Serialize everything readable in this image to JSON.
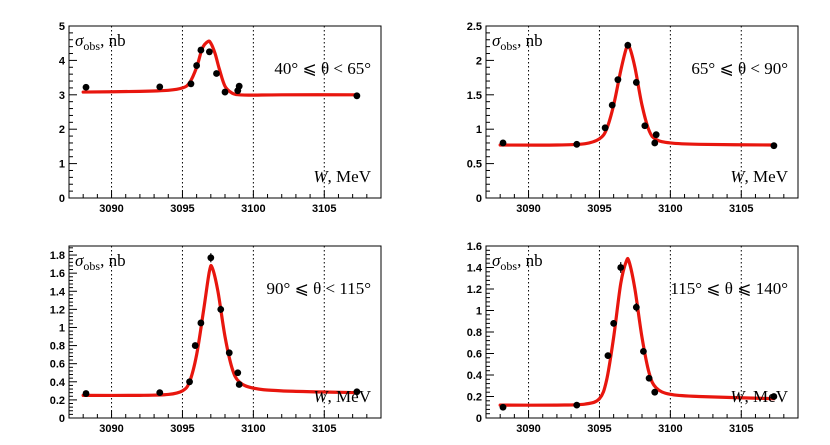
{
  "chart_data": [
    {
      "type": "scatter",
      "panel": "top-left",
      "ylabel": "σobs, nb",
      "xlabel": "W, MeV",
      "annotation": "40° ⩽ θ < 65°",
      "xlim": [
        3087,
        3109
      ],
      "ylim": [
        0,
        5
      ],
      "xticks": [
        3090,
        3095,
        3100,
        3105
      ],
      "yticks": [
        0,
        1,
        2,
        3,
        4,
        5
      ],
      "grid_x": [
        3090,
        3095,
        3100,
        3105
      ],
      "points": [
        {
          "x": 3088.2,
          "y": 3.22,
          "err": 0.06
        },
        {
          "x": 3093.4,
          "y": 3.23,
          "err": 0.06
        },
        {
          "x": 3095.6,
          "y": 3.32,
          "err": 0.06
        },
        {
          "x": 3096.0,
          "y": 3.85,
          "err": 0.08
        },
        {
          "x": 3096.3,
          "y": 4.3,
          "err": 0.08
        },
        {
          "x": 3096.9,
          "y": 4.25,
          "err": 0.08
        },
        {
          "x": 3097.4,
          "y": 3.62,
          "err": 0.08
        },
        {
          "x": 3098.0,
          "y": 3.08,
          "err": 0.07
        },
        {
          "x": 3098.9,
          "y": 3.12,
          "err": 0.08
        },
        {
          "x": 3099.0,
          "y": 3.25,
          "err": 0.08
        },
        {
          "x": 3107.3,
          "y": 2.97,
          "err": 0.05
        }
      ],
      "fit_curve": {
        "x": [
          3088.0,
          3092.0,
          3094.0,
          3095.0,
          3095.5,
          3096.0,
          3096.4,
          3096.8,
          3097.0,
          3097.3,
          3097.6,
          3098.0,
          3098.5,
          3099.0,
          3100.0,
          3102.0,
          3107.3
        ],
        "y": [
          3.08,
          3.1,
          3.13,
          3.2,
          3.35,
          3.8,
          4.35,
          4.55,
          4.5,
          4.2,
          3.75,
          3.25,
          3.05,
          3.0,
          2.99,
          3.0,
          3.0
        ]
      }
    },
    {
      "type": "scatter",
      "panel": "top-right",
      "ylabel": "σobs, nb",
      "xlabel": "W, MeV",
      "annotation": "65° ⩽ θ < 90°",
      "xlim": [
        3087,
        3109
      ],
      "ylim": [
        0,
        2.5
      ],
      "xticks": [
        3090,
        3095,
        3100,
        3105
      ],
      "yticks": [
        0,
        0.5,
        1,
        1.5,
        2,
        2.5
      ],
      "grid_x": [
        3090,
        3095,
        3100,
        3105
      ],
      "points": [
        {
          "x": 3088.2,
          "y": 0.8,
          "err": 0.02
        },
        {
          "x": 3093.4,
          "y": 0.78,
          "err": 0.02
        },
        {
          "x": 3095.4,
          "y": 1.02,
          "err": 0.03
        },
        {
          "x": 3095.9,
          "y": 1.35,
          "err": 0.03
        },
        {
          "x": 3096.3,
          "y": 1.72,
          "err": 0.04
        },
        {
          "x": 3097.0,
          "y": 2.22,
          "err": 0.05
        },
        {
          "x": 3097.6,
          "y": 1.68,
          "err": 0.04
        },
        {
          "x": 3098.2,
          "y": 1.05,
          "err": 0.03
        },
        {
          "x": 3098.9,
          "y": 0.8,
          "err": 0.03
        },
        {
          "x": 3099.0,
          "y": 0.92,
          "err": 0.03
        },
        {
          "x": 3107.3,
          "y": 0.76,
          "err": 0.02
        }
      ],
      "fit_curve": {
        "x": [
          3088.0,
          3092.0,
          3094.0,
          3095.0,
          3095.5,
          3096.0,
          3096.5,
          3096.9,
          3097.1,
          3097.5,
          3098.0,
          3098.5,
          3099.0,
          3100.0,
          3102.0,
          3107.3
        ],
        "y": [
          0.77,
          0.77,
          0.79,
          0.86,
          1.0,
          1.35,
          1.85,
          2.18,
          2.2,
          1.9,
          1.35,
          0.98,
          0.85,
          0.8,
          0.78,
          0.77
        ]
      }
    },
    {
      "type": "scatter",
      "panel": "bottom-left",
      "ylabel": "σobs, nb",
      "xlabel": "W, MeV",
      "annotation": "90° ⩽ θ < 115°",
      "xlim": [
        3087,
        3109
      ],
      "ylim": [
        0,
        1.9
      ],
      "xticks": [
        3090,
        3095,
        3100,
        3105
      ],
      "yticks": [
        0,
        0.2,
        0.4,
        0.6,
        0.8,
        1,
        1.2,
        1.4,
        1.6,
        1.8
      ],
      "grid_x": [
        3090,
        3095,
        3100,
        3105
      ],
      "points": [
        {
          "x": 3088.2,
          "y": 0.27,
          "err": 0.01
        },
        {
          "x": 3093.4,
          "y": 0.28,
          "err": 0.01
        },
        {
          "x": 3095.5,
          "y": 0.4,
          "err": 0.02
        },
        {
          "x": 3095.9,
          "y": 0.8,
          "err": 0.03
        },
        {
          "x": 3096.3,
          "y": 1.05,
          "err": 0.03
        },
        {
          "x": 3097.0,
          "y": 1.77,
          "err": 0.05
        },
        {
          "x": 3097.7,
          "y": 1.2,
          "err": 0.04
        },
        {
          "x": 3098.3,
          "y": 0.72,
          "err": 0.03
        },
        {
          "x": 3098.9,
          "y": 0.5,
          "err": 0.02
        },
        {
          "x": 3099.0,
          "y": 0.37,
          "err": 0.02
        },
        {
          "x": 3107.3,
          "y": 0.29,
          "err": 0.01
        }
      ],
      "fit_curve": {
        "x": [
          3088.0,
          3092.0,
          3094.0,
          3095.0,
          3095.5,
          3096.0,
          3096.5,
          3096.9,
          3097.1,
          3097.5,
          3098.0,
          3098.5,
          3099.0,
          3100.0,
          3102.0,
          3107.3
        ],
        "y": [
          0.25,
          0.25,
          0.26,
          0.3,
          0.4,
          0.7,
          1.2,
          1.62,
          1.66,
          1.4,
          0.9,
          0.55,
          0.4,
          0.33,
          0.3,
          0.28
        ]
      }
    },
    {
      "type": "scatter",
      "panel": "bottom-right",
      "ylabel": "σobs, nb",
      "xlabel": "W, MeV",
      "annotation": "115° ⩽ θ ⩽ 140°",
      "xlim": [
        3087,
        3109
      ],
      "ylim": [
        0,
        1.6
      ],
      "xticks": [
        3090,
        3095,
        3100,
        3105
      ],
      "yticks": [
        0,
        0.2,
        0.4,
        0.6,
        0.8,
        1,
        1.2,
        1.4,
        1.6
      ],
      "grid_x": [
        3090,
        3095,
        3100,
        3105
      ],
      "points": [
        {
          "x": 3088.2,
          "y": 0.1,
          "err": 0.01
        },
        {
          "x": 3093.4,
          "y": 0.12,
          "err": 0.01
        },
        {
          "x": 3095.6,
          "y": 0.58,
          "err": 0.03
        },
        {
          "x": 3096.0,
          "y": 0.88,
          "err": 0.03
        },
        {
          "x": 3096.5,
          "y": 1.4,
          "err": 0.05
        },
        {
          "x": 3097.6,
          "y": 1.03,
          "err": 0.04
        },
        {
          "x": 3098.1,
          "y": 0.62,
          "err": 0.03
        },
        {
          "x": 3098.5,
          "y": 0.37,
          "err": 0.02
        },
        {
          "x": 3098.9,
          "y": 0.24,
          "err": 0.03
        },
        {
          "x": 3107.3,
          "y": 0.2,
          "err": 0.01
        }
      ],
      "fit_curve": {
        "x": [
          3088.0,
          3092.0,
          3094.0,
          3095.0,
          3095.5,
          3096.0,
          3096.5,
          3096.9,
          3097.1,
          3097.5,
          3098.0,
          3098.5,
          3099.0,
          3100.0,
          3102.0,
          3107.3
        ],
        "y": [
          0.12,
          0.12,
          0.13,
          0.18,
          0.35,
          0.75,
          1.25,
          1.46,
          1.45,
          1.2,
          0.75,
          0.42,
          0.28,
          0.22,
          0.2,
          0.18
        ]
      }
    }
  ],
  "colors": {
    "fit": "#e8160e",
    "points": "#000000",
    "grid": "#000000",
    "frame": "#000000"
  }
}
